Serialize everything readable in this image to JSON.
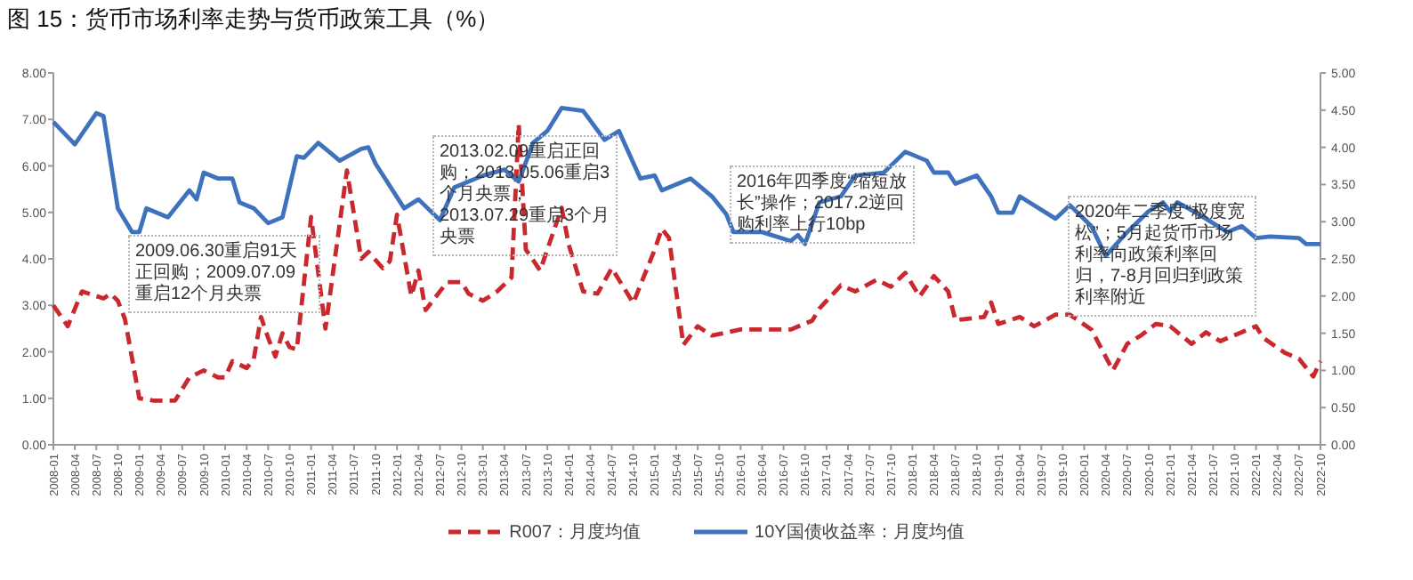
{
  "chart_data": {
    "type": "line",
    "title": "图 15：货币市场利率走势与货币政策工具（%）",
    "xlim": [
      "2008-01",
      "2022-10"
    ],
    "xticks": [
      "2008-01",
      "2008-04",
      "2008-07",
      "2008-10",
      "2009-01",
      "2009-04",
      "2009-07",
      "2009-10",
      "2010-01",
      "2010-04",
      "2010-07",
      "2010-10",
      "2011-01",
      "2011-04",
      "2011-07",
      "2011-10",
      "2012-01",
      "2012-04",
      "2012-07",
      "2012-10",
      "2013-01",
      "2013-04",
      "2013-07",
      "2013-10",
      "2014-01",
      "2014-04",
      "2014-07",
      "2014-10",
      "2015-01",
      "2015-04",
      "2015-07",
      "2015-10",
      "2016-01",
      "2016-04",
      "2016-07",
      "2016-10",
      "2017-01",
      "2017-04",
      "2017-07",
      "2017-10",
      "2018-01",
      "2018-04",
      "2018-07",
      "2018-10",
      "2019-01",
      "2019-04",
      "2019-07",
      "2019-10",
      "2020-01",
      "2020-04",
      "2020-07",
      "2020-10",
      "2021-01",
      "2021-04",
      "2021-07",
      "2021-10",
      "2022-01",
      "2022-04",
      "2022-07",
      "2022-10"
    ],
    "ylim": [
      0,
      8
    ],
    "yticks": [
      {
        "value": 0,
        "label": "0.00"
      },
      {
        "value": 1,
        "label": "1.00"
      },
      {
        "value": 2,
        "label": "2.00"
      },
      {
        "value": 3,
        "label": "3.00"
      },
      {
        "value": 4,
        "label": "4.00"
      },
      {
        "value": 5,
        "label": "5.00"
      },
      {
        "value": 6,
        "label": "6.00"
      },
      {
        "value": 7,
        "label": "7.00"
      },
      {
        "value": 8,
        "label": "8.00"
      }
    ],
    "y2lim": [
      0,
      5
    ],
    "y2ticks": [
      {
        "value": 0,
        "label": "0.00"
      },
      {
        "value": 0.5,
        "label": "0.50"
      },
      {
        "value": 1,
        "label": "1.00"
      },
      {
        "value": 1.5,
        "label": "1.50"
      },
      {
        "value": 2,
        "label": "2.00"
      },
      {
        "value": 2.5,
        "label": "2.50"
      },
      {
        "value": 3,
        "label": "3.00"
      },
      {
        "value": 3.5,
        "label": "3.50"
      },
      {
        "value": 4,
        "label": "4.00"
      },
      {
        "value": 4.5,
        "label": "4.50"
      },
      {
        "value": 5,
        "label": "5.00"
      }
    ],
    "legend": "bottom",
    "series": [
      {
        "name": "R007：月度均值",
        "color": "#c8282e",
        "line_style": "dashed",
        "axis": "y",
        "x": [
          "2008-01",
          "2008-03",
          "2008-05",
          "2008-08",
          "2008-09",
          "2008-10",
          "2008-11",
          "2009-01",
          "2009-03",
          "2009-06",
          "2009-08",
          "2009-10",
          "2009-12",
          "2010-01",
          "2010-02",
          "2010-04",
          "2010-05",
          "2010-06",
          "2010-07",
          "2010-08",
          "2010-09",
          "2010-10",
          "2010-11",
          "2011-01",
          "2011-03",
          "2011-06",
          "2011-08",
          "2011-09",
          "2011-11",
          "2011-12",
          "2012-01",
          "2012-03",
          "2012-04",
          "2012-05",
          "2012-08",
          "2012-10",
          "2012-11",
          "2013-01",
          "2013-03",
          "2013-05",
          "2013-06",
          "2013-07",
          "2013-09",
          "2013-12",
          "2014-01",
          "2014-03",
          "2014-05",
          "2014-07",
          "2014-10",
          "2015-01",
          "2015-02",
          "2015-03",
          "2015-05",
          "2015-07",
          "2015-09",
          "2016-01",
          "2016-08",
          "2016-11",
          "2016-12",
          "2017-03",
          "2017-05",
          "2017-08",
          "2017-10",
          "2017-12",
          "2018-02",
          "2018-04",
          "2018-06",
          "2018-07",
          "2018-11",
          "2018-12",
          "2019-01",
          "2019-04",
          "2019-06",
          "2019-09",
          "2019-11",
          "2020-02",
          "2020-05",
          "2020-07",
          "2020-09",
          "2020-11",
          "2021-01",
          "2021-04",
          "2021-06",
          "2021-08",
          "2022-01",
          "2022-02",
          "2022-05",
          "2022-07",
          "2022-09",
          "2022-10"
        ],
        "values": [
          3.0,
          2.55,
          3.3,
          3.15,
          3.25,
          3.1,
          2.7,
          1.0,
          0.95,
          0.95,
          1.45,
          1.6,
          1.45,
          1.45,
          1.8,
          1.65,
          1.85,
          2.75,
          2.3,
          1.9,
          2.4,
          2.1,
          2.05,
          4.9,
          2.5,
          5.9,
          4.0,
          4.15,
          3.8,
          3.95,
          4.95,
          3.2,
          3.75,
          2.9,
          3.5,
          3.5,
          3.25,
          3.1,
          3.3,
          3.6,
          6.9,
          4.2,
          3.75,
          5.1,
          4.3,
          3.3,
          3.25,
          3.8,
          3.05,
          4.2,
          4.65,
          4.45,
          2.15,
          2.55,
          2.35,
          2.48,
          2.48,
          2.67,
          2.93,
          3.43,
          3.3,
          3.55,
          3.4,
          3.7,
          3.19,
          3.63,
          3.3,
          2.68,
          2.75,
          3.06,
          2.6,
          2.75,
          2.55,
          2.8,
          2.8,
          2.48,
          1.6,
          2.17,
          2.36,
          2.6,
          2.55,
          2.17,
          2.42,
          2.23,
          2.55,
          2.3,
          1.98,
          1.85,
          1.47,
          1.8
        ]
      },
      {
        "name": "10Y国债收益率：月度均值",
        "color": "#3f72bd",
        "line_style": "solid",
        "axis": "y2",
        "x": [
          "2008-01",
          "2008-03",
          "2008-04",
          "2008-07",
          "2008-08",
          "2008-10",
          "2008-12",
          "2009-01",
          "2009-02",
          "2009-05",
          "2009-08",
          "2009-09",
          "2009-10",
          "2009-12",
          "2010-02",
          "2010-03",
          "2010-05",
          "2010-07",
          "2010-09",
          "2010-11",
          "2010-12",
          "2011-02",
          "2011-04",
          "2011-05",
          "2011-08",
          "2011-09",
          "2011-10",
          "2012-02",
          "2012-04",
          "2012-07",
          "2012-09",
          "2013-01",
          "2013-04",
          "2013-06",
          "2013-08",
          "2013-10",
          "2013-12",
          "2014-03",
          "2014-06",
          "2014-08",
          "2014-11",
          "2015-01",
          "2015-02",
          "2015-05",
          "2015-06",
          "2015-09",
          "2015-11",
          "2015-12",
          "2016-04",
          "2016-08",
          "2016-09",
          "2016-10",
          "2016-12",
          "2017-03",
          "2017-05",
          "2017-09",
          "2017-12",
          "2018-03",
          "2018-04",
          "2018-06",
          "2018-07",
          "2018-10",
          "2018-12",
          "2019-01",
          "2019-03",
          "2019-04",
          "2019-09",
          "2019-11",
          "2020-02",
          "2020-04",
          "2020-07",
          "2020-10",
          "2020-12",
          "2021-01",
          "2021-02",
          "2021-05",
          "2021-09",
          "2021-11",
          "2022-01",
          "2022-03",
          "2022-07",
          "2022-08",
          "2022-10"
        ],
        "values": [
          4.34,
          4.14,
          4.04,
          4.46,
          4.42,
          3.18,
          2.86,
          2.86,
          3.18,
          3.06,
          3.42,
          3.3,
          3.66,
          3.58,
          3.58,
          3.26,
          3.18,
          2.98,
          3.06,
          3.88,
          3.86,
          4.06,
          3.9,
          3.82,
          3.98,
          4.0,
          3.78,
          3.18,
          3.3,
          3.02,
          3.46,
          3.62,
          3.7,
          3.54,
          4.06,
          4.22,
          4.53,
          4.49,
          4.1,
          4.22,
          3.58,
          3.62,
          3.42,
          3.54,
          3.58,
          3.34,
          3.1,
          2.86,
          2.86,
          2.74,
          2.82,
          2.7,
          3.26,
          3.34,
          3.62,
          3.66,
          3.94,
          3.82,
          3.66,
          3.66,
          3.51,
          3.62,
          3.34,
          3.12,
          3.12,
          3.34,
          3.04,
          3.22,
          2.94,
          2.54,
          2.86,
          3.14,
          3.26,
          3.14,
          3.26,
          3.1,
          2.86,
          2.94,
          2.78,
          2.8,
          2.78,
          2.7,
          2.7
        ]
      }
    ],
    "annotations": [
      "2009.06.30重启91天正回购；2009.07.09重启12个月央票",
      "2013.02.09重启正回购；2013.05.06重启3个月央票；2013.07.29重启3个月央票",
      "2016年四季度“缩短放长”操作；2017.2逆回购利率上行10bp",
      "2020年二季度“极度宽松”；5月起货币市场利率向政策利率回归，7-8月回归到政策利率附近"
    ]
  }
}
